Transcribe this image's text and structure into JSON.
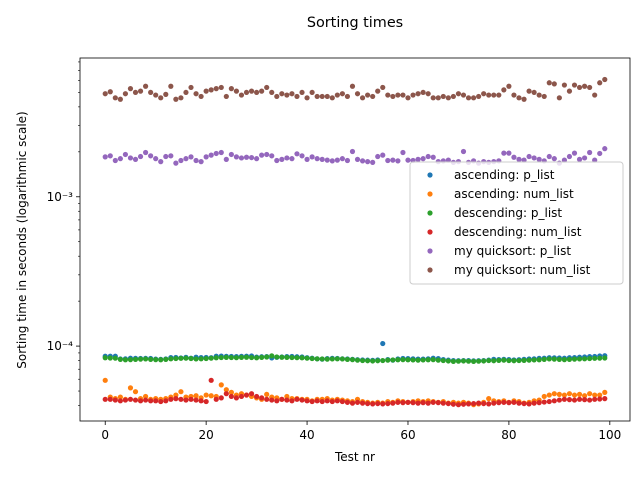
{
  "chart_data": {
    "type": "scatter",
    "title": "Sorting times",
    "xlabel": "Test nr",
    "ylabel": "Sorting time in seconds (logarithmic scale)",
    "xlim": [
      -5,
      104
    ],
    "ylim": [
      3.15e-05,
      0.0085
    ],
    "yscale": "log",
    "xticks": [
      0,
      20,
      40,
      60,
      80,
      100
    ],
    "xtick_labels": [
      "0",
      "20",
      "40",
      "60",
      "80",
      "100"
    ],
    "yticks": [
      0.0001,
      0.001
    ],
    "ytick_labels": [
      "10⁻⁴",
      "10⁻³"
    ],
    "grid": false,
    "legend_position": "center-right",
    "x": [
      0,
      1,
      2,
      3,
      4,
      5,
      6,
      7,
      8,
      9,
      10,
      11,
      12,
      13,
      14,
      15,
      16,
      17,
      18,
      19,
      20,
      21,
      22,
      23,
      24,
      25,
      26,
      27,
      28,
      29,
      30,
      31,
      32,
      33,
      34,
      35,
      36,
      37,
      38,
      39,
      40,
      41,
      42,
      43,
      44,
      45,
      46,
      47,
      48,
      49,
      50,
      51,
      52,
      53,
      54,
      55,
      56,
      57,
      58,
      59,
      60,
      61,
      62,
      63,
      64,
      65,
      66,
      67,
      68,
      69,
      70,
      71,
      72,
      73,
      74,
      75,
      76,
      77,
      78,
      79,
      80,
      81,
      82,
      83,
      84,
      85,
      86,
      87,
      88,
      89,
      90,
      91,
      92,
      93,
      94,
      95,
      96,
      97,
      98,
      99
    ],
    "series": [
      {
        "name": "ascending: p_list",
        "color": "#1f77b4",
        "values": [
          8.55e-05,
          8.55e-05,
          8.55e-05,
          8.2e-05,
          8.22e-05,
          8.3e-05,
          8.28e-05,
          8.26e-05,
          8.27e-05,
          8.26e-05,
          8.18e-05,
          8.15e-05,
          8.2e-05,
          8.38e-05,
          8.39e-05,
          8.33e-05,
          8.41e-05,
          8.3e-05,
          8.42e-05,
          8.38e-05,
          8.39e-05,
          8.36e-05,
          8.55e-05,
          8.57e-05,
          8.54e-05,
          8.52e-05,
          8.5e-05,
          8.54e-05,
          8.56e-05,
          8.58e-05,
          8.44e-05,
          8.48e-05,
          8.5e-05,
          8.34e-05,
          8.41e-05,
          8.46e-05,
          8.5e-05,
          8.52e-05,
          8.48e-05,
          8.45e-05,
          8.36e-05,
          8.3e-05,
          8.22e-05,
          8.18e-05,
          8.24e-05,
          8.28e-05,
          8.26e-05,
          8.22e-05,
          8.2e-05,
          8.15e-05,
          8.1e-05,
          8.08e-05,
          8.05e-05,
          8.02e-05,
          8.08e-05,
          0.000104,
          8.12e-05,
          8.05e-05,
          8.2e-05,
          8.26e-05,
          8.25e-05,
          8.22e-05,
          8.19e-05,
          8.18e-05,
          8.22e-05,
          8.3e-05,
          8.25e-05,
          8.12e-05,
          8.05e-05,
          8e-05,
          7.98e-05,
          8e-05,
          8e-05,
          7.96e-05,
          7.98e-05,
          8e-05,
          8.05e-05,
          8.15e-05,
          8.12e-05,
          8.15e-05,
          8.12e-05,
          8.08e-05,
          8.1e-05,
          8.15e-05,
          8.2e-05,
          8.22e-05,
          8.28e-05,
          8.3e-05,
          8.36e-05,
          8.34e-05,
          8.32e-05,
          8.3e-05,
          8.36e-05,
          8.38e-05,
          8.42e-05,
          8.45e-05,
          8.5e-05,
          8.52e-05,
          8.58e-05,
          8.62e-05
        ]
      },
      {
        "name": "ascending: num_list",
        "color": "#ff7f0e",
        "values": [
          5.9e-05,
          4.55e-05,
          4.45e-05,
          4.55e-05,
          4.4e-05,
          5.25e-05,
          4.95e-05,
          4.45e-05,
          4.6e-05,
          4.4e-05,
          4.45e-05,
          4.4e-05,
          4.45e-05,
          4.55e-05,
          4.7e-05,
          4.95e-05,
          4.55e-05,
          4.6e-05,
          4.65e-05,
          4.5e-05,
          4.7e-05,
          4.65e-05,
          4.6e-05,
          5.5e-05,
          5.1e-05,
          4.9e-05,
          4.7e-05,
          4.8e-05,
          4.7e-05,
          4.6e-05,
          4.5e-05,
          4.4e-05,
          4.75e-05,
          4.55e-05,
          4.5e-05,
          4.4e-05,
          4.6e-05,
          4.45e-05,
          4.45e-05,
          4.4e-05,
          4.4e-05,
          4.3e-05,
          4.4e-05,
          4.4e-05,
          4.45e-05,
          4.35e-05,
          4.4e-05,
          4.35e-05,
          4.3e-05,
          4.25e-05,
          4.4e-05,
          4.25e-05,
          4.2e-05,
          4.15e-05,
          4.2e-05,
          4.15e-05,
          4.25e-05,
          4.2e-05,
          4.3e-05,
          4.25e-05,
          4.2e-05,
          4.25e-05,
          4.3e-05,
          4.25e-05,
          4.3e-05,
          4.25e-05,
          4.2e-05,
          4.25e-05,
          4.15e-05,
          4.2e-05,
          4.15e-05,
          4.2e-05,
          4.15e-05,
          4.05e-05,
          4.1e-05,
          4.2e-05,
          4.45e-05,
          4.3e-05,
          4.25e-05,
          4.3e-05,
          4.2e-05,
          4.3e-05,
          4.25e-05,
          4.15e-05,
          4.2e-05,
          4.3e-05,
          4.35e-05,
          4.6e-05,
          4.7e-05,
          4.8e-05,
          4.75e-05,
          4.7e-05,
          4.8e-05,
          4.7e-05,
          4.75e-05,
          4.65e-05,
          4.8e-05,
          4.7e-05,
          4.7e-05,
          4.9e-05
        ]
      },
      {
        "name": "descending: p_list",
        "color": "#2ca02c",
        "values": [
          8.35e-05,
          8.32e-05,
          8.3e-05,
          8.15e-05,
          8.1e-05,
          8.12e-05,
          8.15e-05,
          8.18e-05,
          8.2e-05,
          8.15e-05,
          8.12e-05,
          8.1e-05,
          8.15e-05,
          8.22e-05,
          8.25e-05,
          8.28e-05,
          8.3e-05,
          8.26e-05,
          8.2e-05,
          8.22e-05,
          8.25e-05,
          8.3e-05,
          8.35e-05,
          8.38e-05,
          8.4e-05,
          8.38e-05,
          8.36e-05,
          8.4e-05,
          8.42e-05,
          8.38e-05,
          8.35e-05,
          8.4e-05,
          8.45e-05,
          8.6e-05,
          8.45e-05,
          8.42e-05,
          8.4e-05,
          8.38e-05,
          8.36e-05,
          8.35e-05,
          8.3e-05,
          8.25e-05,
          8.22e-05,
          8.2e-05,
          8.18e-05,
          8.2e-05,
          8.22e-05,
          8.2e-05,
          8.15e-05,
          8.12e-05,
          8.05e-05,
          8e-05,
          7.98e-05,
          7.95e-05,
          7.98e-05,
          8e-05,
          8.05e-05,
          8.08e-05,
          8.1e-05,
          8.12e-05,
          8.1e-05,
          8.08e-05,
          8.05e-05,
          8.08e-05,
          8.1e-05,
          8.12e-05,
          8.05e-05,
          8e-05,
          7.95e-05,
          7.9e-05,
          7.92e-05,
          7.95e-05,
          7.92e-05,
          7.9e-05,
          7.92e-05,
          7.95e-05,
          8e-05,
          7.98e-05,
          8.02e-05,
          8.05e-05,
          8e-05,
          7.98e-05,
          8e-05,
          8.02e-05,
          8.05e-05,
          8.08e-05,
          8.1e-05,
          8.15e-05,
          8.2e-05,
          8.18e-05,
          8.15e-05,
          8.12e-05,
          8.15e-05,
          8.18e-05,
          8.2e-05,
          8.22e-05,
          8.25e-05,
          8.28e-05,
          8.3e-05,
          8.32e-05
        ]
      },
      {
        "name": "descending: num_list",
        "color": "#d62728",
        "values": [
          4.4e-05,
          4.4e-05,
          4.35e-05,
          4.3e-05,
          4.35e-05,
          4.4e-05,
          4.35e-05,
          4.3e-05,
          4.35e-05,
          4.3e-05,
          4.3e-05,
          4.25e-05,
          4.3e-05,
          4.4e-05,
          4.45e-05,
          4.4e-05,
          4.35e-05,
          4.4e-05,
          4.35e-05,
          4.3e-05,
          4.25e-05,
          5.9e-05,
          4.4e-05,
          4.5e-05,
          4.8e-05,
          4.6e-05,
          4.5e-05,
          4.6e-05,
          4.7e-05,
          4.8e-05,
          4.6e-05,
          4.5e-05,
          4.4e-05,
          4.35e-05,
          4.3e-05,
          4.4e-05,
          4.35e-05,
          4.3e-05,
          4.4e-05,
          4.35e-05,
          4.3e-05,
          4.25e-05,
          4.3e-05,
          4.25e-05,
          4.3e-05,
          4.25e-05,
          4.3e-05,
          4.25e-05,
          4.2e-05,
          4.15e-05,
          4.2e-05,
          4.15e-05,
          4.12e-05,
          4.1e-05,
          4.12e-05,
          4.1e-05,
          4.12e-05,
          4.15e-05,
          4.2e-05,
          4.18e-05,
          4.2e-05,
          4.18e-05,
          4.15e-05,
          4.18e-05,
          4.15e-05,
          4.2e-05,
          4.18e-05,
          4.15e-05,
          4.12e-05,
          4.08e-05,
          4.05e-05,
          4.08e-05,
          4.1e-05,
          4.12e-05,
          4.15e-05,
          4.12e-05,
          4.1e-05,
          4.15e-05,
          4.18e-05,
          4.2e-05,
          4.18e-05,
          4.2e-05,
          4.15e-05,
          4.12e-05,
          4.1e-05,
          4.15e-05,
          4.18e-05,
          4.22e-05,
          4.25e-05,
          4.3e-05,
          4.35e-05,
          4.4e-05,
          4.38e-05,
          4.35e-05,
          4.4e-05,
          4.38e-05,
          4.35e-05,
          4.4e-05,
          4.42e-05,
          4.45e-05
        ]
      },
      {
        "name": "my quicksort: p_list",
        "color": "#9467bd",
        "values": [
          0.00185,
          0.00188,
          0.00175,
          0.0018,
          0.00192,
          0.00182,
          0.00178,
          0.00186,
          0.00198,
          0.00188,
          0.0018,
          0.00172,
          0.00186,
          0.00188,
          0.00168,
          0.00175,
          0.0018,
          0.00185,
          0.00175,
          0.00172,
          0.00185,
          0.0019,
          0.00195,
          0.00198,
          0.00178,
          0.00192,
          0.00185,
          0.00182,
          0.00184,
          0.00183,
          0.0018,
          0.0019,
          0.00192,
          0.00188,
          0.00175,
          0.00178,
          0.00182,
          0.0018,
          0.00194,
          0.00188,
          0.00178,
          0.00185,
          0.0018,
          0.00178,
          0.00176,
          0.00174,
          0.00176,
          0.0018,
          0.00175,
          0.00201,
          0.00178,
          0.00174,
          0.00172,
          0.0017,
          0.00186,
          0.0019,
          0.00175,
          0.00176,
          0.00174,
          0.00198,
          0.00176,
          0.00175,
          0.00178,
          0.0018,
          0.00186,
          0.00184,
          0.00172,
          0.00174,
          0.00176,
          0.0017,
          0.00172,
          0.00201,
          0.0017,
          0.00174,
          0.00168,
          0.00172,
          0.0017,
          0.00172,
          0.00174,
          0.00196,
          0.00196,
          0.00184,
          0.00178,
          0.00176,
          0.00186,
          0.00182,
          0.00178,
          0.00174,
          0.00186,
          0.0018,
          0.00168,
          0.00176,
          0.00186,
          0.00196,
          0.00178,
          0.00182,
          0.00198,
          0.00176,
          0.00195,
          0.0021
        ]
      },
      {
        "name": "my quicksort: num_list",
        "color": "#8c564b",
        "values": [
          0.0049,
          0.00505,
          0.0046,
          0.0045,
          0.0049,
          0.0053,
          0.005,
          0.0051,
          0.0055,
          0.005,
          0.0048,
          0.0046,
          0.00485,
          0.0055,
          0.0045,
          0.0046,
          0.005,
          0.0054,
          0.0049,
          0.0047,
          0.0051,
          0.0052,
          0.0053,
          0.0054,
          0.0047,
          0.0053,
          0.0051,
          0.0048,
          0.005,
          0.0051,
          0.005,
          0.0051,
          0.0054,
          0.005,
          0.0047,
          0.0049,
          0.0048,
          0.0049,
          0.0047,
          0.005,
          0.0046,
          0.005,
          0.0047,
          0.0047,
          0.0047,
          0.0046,
          0.0048,
          0.0049,
          0.0047,
          0.0055,
          0.0049,
          0.0046,
          0.0048,
          0.0047,
          0.0051,
          0.0054,
          0.0048,
          0.0047,
          0.0048,
          0.0048,
          0.0046,
          0.0048,
          0.0049,
          0.005,
          0.0049,
          0.0046,
          0.0046,
          0.0047,
          0.0046,
          0.0047,
          0.0049,
          0.0048,
          0.0046,
          0.0046,
          0.0047,
          0.0049,
          0.0048,
          0.0048,
          0.0048,
          0.0052,
          0.0055,
          0.0048,
          0.0046,
          0.0045,
          0.0051,
          0.005,
          0.0048,
          0.0047,
          0.0058,
          0.0057,
          0.0046,
          0.0056,
          0.0051,
          0.0056,
          0.0054,
          0.0055,
          0.0054,
          0.0048,
          0.0058,
          0.0061
        ]
      }
    ]
  }
}
